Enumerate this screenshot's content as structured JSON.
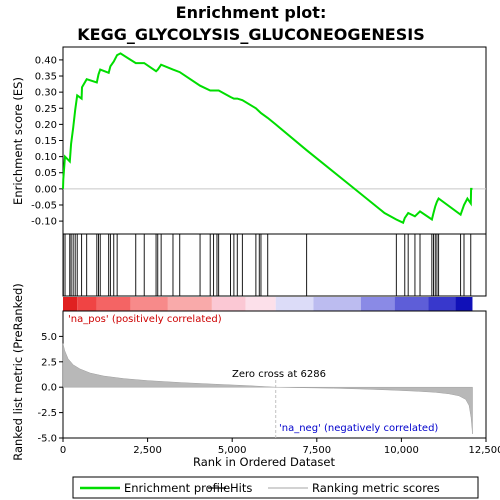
{
  "chart_data": {
    "type": "line",
    "title_line1": "Enrichment plot:",
    "title_line2": "KEGG_GLYCOLYSIS_GLUCONEOGENESIS",
    "ylabel_top": "Enrichment score (ES)",
    "ylabel_bottom": "Ranked list metric (PreRanked)",
    "xlabel": "Rank in Ordered Dataset",
    "xlim": [
      0,
      12500
    ],
    "ylim_es": [
      -0.14,
      0.44
    ],
    "ylim_metric": [
      -5,
      7.5
    ],
    "x_ticks": [
      0,
      2500,
      5000,
      7500,
      10000,
      12500
    ],
    "x_tick_labels": [
      "0",
      "2,500",
      "5,000",
      "7,500",
      "10,000",
      "12,500"
    ],
    "es_ticks": [
      -0.1,
      -0.05,
      0.0,
      0.05,
      0.1,
      0.15,
      0.2,
      0.25,
      0.3,
      0.35,
      0.4
    ],
    "es_tick_labels": [
      "-0.10",
      "-0.05",
      "0.00",
      "0.05",
      "0.10",
      "0.15",
      "0.20",
      "0.25",
      "0.30",
      "0.35",
      "0.40"
    ],
    "metric_ticks": [
      -5.0,
      -2.5,
      0.0,
      2.5,
      5.0
    ],
    "metric_tick_labels": [
      "-5.0",
      "-2.5",
      "0.0",
      "2.5",
      "5.0"
    ],
    "zero_cross_label": "Zero cross at 6286",
    "zero_cross_rank": 6286,
    "pos_label": "'na_pos' (positively correlated)",
    "neg_label": "'na_neg' (negatively correlated)",
    "total_ranks": 12100,
    "hits": [
      10,
      60,
      200,
      240,
      300,
      360,
      420,
      550,
      700,
      1000,
      1050,
      1100,
      1350,
      1400,
      1500,
      1600,
      2150,
      2400,
      2750,
      2800,
      2900,
      3250,
      3450,
      4050,
      4350,
      4450,
      4550,
      4600,
      4950,
      5050,
      5150,
      5300,
      5700,
      5800,
      5850,
      6050,
      7200,
      9850,
      10100,
      10200,
      10400,
      10550,
      10900,
      10950,
      11000,
      11050,
      11100,
      11750,
      11850,
      12050
    ],
    "es_curve": [
      [
        0,
        0.0
      ],
      [
        10,
        0.03
      ],
      [
        60,
        0.1
      ],
      [
        200,
        0.085
      ],
      [
        240,
        0.14
      ],
      [
        300,
        0.19
      ],
      [
        360,
        0.245
      ],
      [
        420,
        0.29
      ],
      [
        550,
        0.28
      ],
      [
        560,
        0.315
      ],
      [
        700,
        0.34
      ],
      [
        1000,
        0.33
      ],
      [
        1050,
        0.355
      ],
      [
        1100,
        0.37
      ],
      [
        1350,
        0.36
      ],
      [
        1400,
        0.38
      ],
      [
        1500,
        0.395
      ],
      [
        1600,
        0.415
      ],
      [
        1700,
        0.42
      ],
      [
        2150,
        0.39
      ],
      [
        2400,
        0.39
      ],
      [
        2750,
        0.365
      ],
      [
        2800,
        0.37
      ],
      [
        2900,
        0.385
      ],
      [
        3250,
        0.37
      ],
      [
        3450,
        0.362
      ],
      [
        4050,
        0.32
      ],
      [
        4350,
        0.305
      ],
      [
        4450,
        0.305
      ],
      [
        4550,
        0.305
      ],
      [
        4600,
        0.305
      ],
      [
        4950,
        0.285
      ],
      [
        5050,
        0.28
      ],
      [
        5150,
        0.28
      ],
      [
        5300,
        0.275
      ],
      [
        5700,
        0.25
      ],
      [
        5800,
        0.24
      ],
      [
        5850,
        0.235
      ],
      [
        6050,
        0.22
      ],
      [
        6286,
        0.2
      ],
      [
        7200,
        0.12
      ],
      [
        8500,
        0.01
      ],
      [
        9500,
        -0.075
      ],
      [
        9850,
        -0.095
      ],
      [
        10050,
        -0.105
      ],
      [
        10100,
        -0.09
      ],
      [
        10200,
        -0.075
      ],
      [
        10400,
        -0.085
      ],
      [
        10550,
        -0.07
      ],
      [
        10900,
        -0.095
      ],
      [
        10950,
        -0.075
      ],
      [
        11000,
        -0.055
      ],
      [
        11050,
        -0.04
      ],
      [
        11100,
        -0.03
      ],
      [
        11750,
        -0.08
      ],
      [
        11850,
        -0.05
      ],
      [
        11950,
        -0.03
      ],
      [
        12050,
        -0.045
      ],
      [
        12060,
        0.0
      ],
      [
        12100,
        0.0
      ]
    ],
    "metric_curve": [
      [
        0,
        4.3
      ],
      [
        50,
        3.6
      ],
      [
        150,
        2.8
      ],
      [
        300,
        2.2
      ],
      [
        500,
        1.8
      ],
      [
        800,
        1.4
      ],
      [
        1200,
        1.1
      ],
      [
        1800,
        0.85
      ],
      [
        2500,
        0.65
      ],
      [
        3500,
        0.45
      ],
      [
        4500,
        0.3
      ],
      [
        5500,
        0.15
      ],
      [
        6286,
        0.0
      ],
      [
        7000,
        -0.05
      ],
      [
        8000,
        -0.1
      ],
      [
        9000,
        -0.2
      ],
      [
        9800,
        -0.3
      ],
      [
        10500,
        -0.4
      ],
      [
        11000,
        -0.5
      ],
      [
        11400,
        -0.65
      ],
      [
        11700,
        -0.85
      ],
      [
        11900,
        -1.2
      ],
      [
        12000,
        -1.8
      ],
      [
        12060,
        -3.0
      ],
      [
        12100,
        -4.6
      ]
    ],
    "colorbar_segments": [
      {
        "start": 0,
        "end": 420,
        "color": "#e02020"
      },
      {
        "start": 420,
        "end": 1000,
        "color": "#f04444"
      },
      {
        "start": 1000,
        "end": 2000,
        "color": "#f46464"
      },
      {
        "start": 2000,
        "end": 3100,
        "color": "#f78a8a"
      },
      {
        "start": 3100,
        "end": 4400,
        "color": "#f9aaaa"
      },
      {
        "start": 4400,
        "end": 5400,
        "color": "#fbc8d4"
      },
      {
        "start": 5400,
        "end": 6286,
        "color": "#fce0ea"
      },
      {
        "start": 6286,
        "end": 7400,
        "color": "#dcdcf8"
      },
      {
        "start": 7400,
        "end": 8800,
        "color": "#bcbcf0"
      },
      {
        "start": 8800,
        "end": 9800,
        "color": "#8a8ae6"
      },
      {
        "start": 9800,
        "end": 10800,
        "color": "#5e5ed8"
      },
      {
        "start": 10800,
        "end": 11600,
        "color": "#3838cc"
      },
      {
        "start": 11600,
        "end": 12100,
        "color": "#1010b8"
      }
    ],
    "colors": {
      "es_line": "#00dd00",
      "hit_line": "#000000",
      "metric_fill": "#b8b8b8",
      "zero_line": "#c0c0c0",
      "pos_label": "#cc0000",
      "neg_label": "#0000cc"
    },
    "legend": [
      {
        "label": "Enrichment profile",
        "kind": "line",
        "color": "#00dd00"
      },
      {
        "label": "Hits",
        "kind": "line",
        "color": "#000000"
      },
      {
        "label": "Ranking metric scores",
        "kind": "line",
        "color": "#b8b8b8"
      }
    ]
  }
}
